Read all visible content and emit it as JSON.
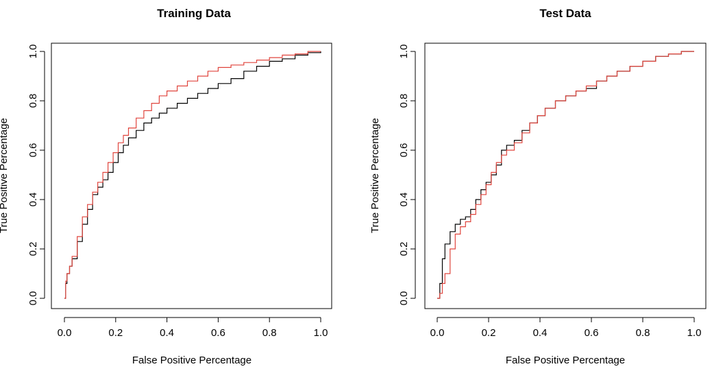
{
  "chart_data": [
    {
      "type": "line",
      "title": "Training Data",
      "xlabel": "False Positive Percentage",
      "ylabel": "True Positive Percentage",
      "xlim": [
        0,
        1
      ],
      "ylim": [
        0,
        1
      ],
      "xticks": [
        "0.0",
        "0.2",
        "0.4",
        "0.6",
        "0.8",
        "1.0"
      ],
      "yticks": [
        "0.0",
        "0.2",
        "0.4",
        "0.6",
        "0.8",
        "1.0"
      ],
      "grid": false,
      "series": [
        {
          "color": "#000000",
          "x": [
            0.0,
            0.005,
            0.01,
            0.02,
            0.03,
            0.05,
            0.07,
            0.09,
            0.11,
            0.13,
            0.15,
            0.17,
            0.19,
            0.21,
            0.23,
            0.25,
            0.28,
            0.31,
            0.34,
            0.37,
            0.4,
            0.44,
            0.48,
            0.52,
            0.56,
            0.6,
            0.65,
            0.7,
            0.75,
            0.8,
            0.85,
            0.9,
            0.95,
            1.0
          ],
          "y": [
            0.0,
            0.06,
            0.1,
            0.13,
            0.16,
            0.23,
            0.3,
            0.36,
            0.42,
            0.45,
            0.48,
            0.51,
            0.55,
            0.59,
            0.62,
            0.65,
            0.68,
            0.71,
            0.73,
            0.75,
            0.77,
            0.79,
            0.81,
            0.83,
            0.85,
            0.87,
            0.89,
            0.92,
            0.94,
            0.96,
            0.97,
            0.985,
            0.995,
            1.0
          ]
        },
        {
          "color": "#e0443c",
          "x": [
            0.0,
            0.005,
            0.01,
            0.02,
            0.03,
            0.05,
            0.07,
            0.09,
            0.11,
            0.13,
            0.15,
            0.17,
            0.19,
            0.21,
            0.23,
            0.25,
            0.28,
            0.31,
            0.34,
            0.37,
            0.4,
            0.44,
            0.48,
            0.52,
            0.56,
            0.6,
            0.65,
            0.7,
            0.75,
            0.8,
            0.85,
            0.9,
            0.95,
            1.0
          ],
          "y": [
            0.0,
            0.07,
            0.1,
            0.13,
            0.17,
            0.25,
            0.33,
            0.38,
            0.43,
            0.47,
            0.51,
            0.55,
            0.59,
            0.63,
            0.66,
            0.69,
            0.73,
            0.76,
            0.79,
            0.82,
            0.84,
            0.86,
            0.88,
            0.9,
            0.92,
            0.935,
            0.945,
            0.955,
            0.965,
            0.975,
            0.985,
            0.99,
            1.0,
            1.0
          ]
        }
      ]
    },
    {
      "type": "line",
      "title": "Test Data",
      "xlabel": "False Positive Percentage",
      "ylabel": "True Positive Percentage",
      "xlim": [
        0,
        1
      ],
      "ylim": [
        0,
        1
      ],
      "xticks": [
        "0.0",
        "0.2",
        "0.4",
        "0.6",
        "0.8",
        "1.0"
      ],
      "yticks": [
        "0.0",
        "0.2",
        "0.4",
        "0.6",
        "0.8",
        "1.0"
      ],
      "grid": false,
      "series": [
        {
          "color": "#000000",
          "x": [
            0.0,
            0.01,
            0.02,
            0.03,
            0.05,
            0.07,
            0.09,
            0.11,
            0.13,
            0.15,
            0.17,
            0.19,
            0.21,
            0.23,
            0.25,
            0.27,
            0.3,
            0.33,
            0.36,
            0.39,
            0.42,
            0.46,
            0.5,
            0.54,
            0.58,
            0.62,
            0.66,
            0.7,
            0.75,
            0.8,
            0.85,
            0.9,
            0.95,
            1.0
          ],
          "y": [
            0.0,
            0.06,
            0.16,
            0.22,
            0.27,
            0.3,
            0.32,
            0.33,
            0.36,
            0.4,
            0.44,
            0.47,
            0.5,
            0.54,
            0.6,
            0.62,
            0.64,
            0.68,
            0.71,
            0.74,
            0.77,
            0.8,
            0.82,
            0.84,
            0.85,
            0.88,
            0.9,
            0.92,
            0.94,
            0.96,
            0.98,
            0.99,
            1.0,
            1.0
          ]
        },
        {
          "color": "#e0443c",
          "x": [
            0.0,
            0.01,
            0.02,
            0.03,
            0.05,
            0.07,
            0.09,
            0.11,
            0.13,
            0.15,
            0.17,
            0.19,
            0.21,
            0.23,
            0.25,
            0.27,
            0.3,
            0.33,
            0.36,
            0.39,
            0.42,
            0.46,
            0.5,
            0.54,
            0.58,
            0.62,
            0.66,
            0.7,
            0.75,
            0.8,
            0.85,
            0.9,
            0.95,
            1.0
          ],
          "y": [
            0.0,
            0.02,
            0.06,
            0.1,
            0.2,
            0.26,
            0.29,
            0.31,
            0.34,
            0.38,
            0.42,
            0.46,
            0.51,
            0.55,
            0.58,
            0.6,
            0.63,
            0.67,
            0.71,
            0.74,
            0.77,
            0.8,
            0.82,
            0.84,
            0.86,
            0.88,
            0.9,
            0.92,
            0.94,
            0.96,
            0.98,
            0.99,
            1.0,
            1.0
          ]
        }
      ]
    }
  ]
}
